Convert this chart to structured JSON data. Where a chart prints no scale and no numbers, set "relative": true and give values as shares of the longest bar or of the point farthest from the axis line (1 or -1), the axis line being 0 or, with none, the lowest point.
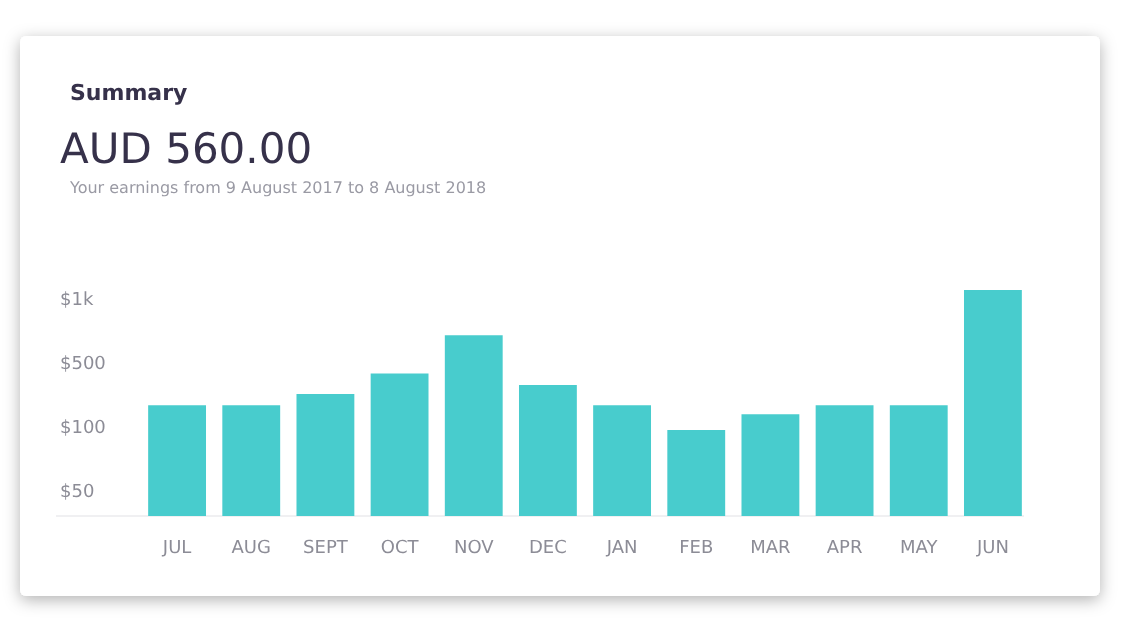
{
  "chart_data": {
    "type": "bar",
    "title": "Summary",
    "subtitle": "Your earnings from 9 August 2017 to 8 August 2018",
    "annotations": [
      "AUD 560.00",
      "$1k",
      "$500",
      "$100",
      "$50"
    ],
    "categories": [
      "JUL",
      "AUG",
      "SEPT",
      "OCT",
      "NOV",
      "DEC",
      "JAN",
      "FEB",
      "MAR",
      "APR",
      "MAY",
      "JUN"
    ],
    "values": [
      0.49,
      0.49,
      0.54,
      0.63,
      0.8,
      0.58,
      0.49,
      0.38,
      0.45,
      0.49,
      0.49,
      1
    ],
    "color": "#48cccd",
    "relative": true
  }
}
